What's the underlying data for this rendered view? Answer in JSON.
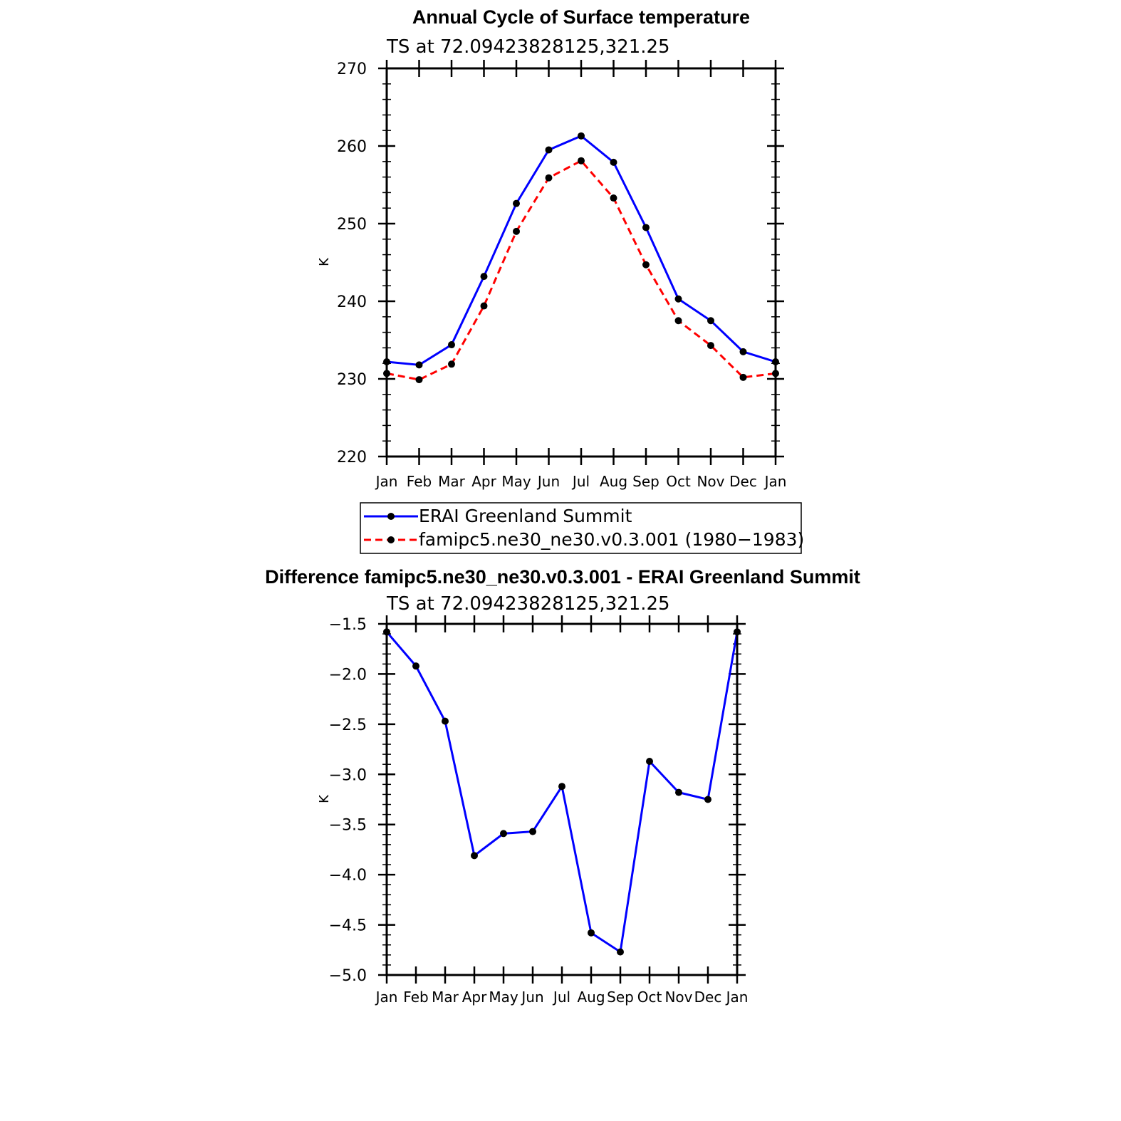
{
  "chart_data": [
    {
      "type": "line",
      "title": "Annual Cycle of Surface temperature",
      "subtitle": "TS  at  72.09423828125,321.25",
      "ylabel": "K",
      "xlabel": "",
      "categories": [
        "Jan",
        "Feb",
        "Mar",
        "Apr",
        "May",
        "Jun",
        "Jul",
        "Aug",
        "Sep",
        "Oct",
        "Nov",
        "Dec",
        "Jan"
      ],
      "ylim": [
        220,
        270
      ],
      "yticks": [
        220,
        230,
        240,
        250,
        260,
        270
      ],
      "ytick_labels": [
        "220",
        "230",
        "240",
        "250",
        "260",
        "270"
      ],
      "series": [
        {
          "name": "ERAI Greenland Summit",
          "color": "#0000ff",
          "dash": "solid",
          "values": [
            232.2,
            231.8,
            234.4,
            243.2,
            252.6,
            259.5,
            261.3,
            257.9,
            249.5,
            240.3,
            237.5,
            233.5,
            232.2
          ]
        },
        {
          "name": "famipc5.ne30_ne30.v0.3.001  (1980−1983)",
          "color": "#ff0000",
          "dash": "dashed",
          "values": [
            230.7,
            229.9,
            231.9,
            239.4,
            249.0,
            255.9,
            258.1,
            253.3,
            244.7,
            237.5,
            234.3,
            230.2,
            230.7
          ]
        }
      ],
      "legend": "bottom"
    },
    {
      "type": "line",
      "title": "Difference famipc5.ne30_ne30.v0.3.001 - ERAI Greenland Summit",
      "subtitle": "TS  at  72.09423828125,321.25",
      "ylabel": "K",
      "xlabel": "",
      "categories": [
        "Jan",
        "Feb",
        "Mar",
        "Apr",
        "May",
        "Jun",
        "Jul",
        "Aug",
        "Sep",
        "Oct",
        "Nov",
        "Dec",
        "Jan"
      ],
      "ylim": [
        -5.0,
        -1.5
      ],
      "yticks": [
        -5.0,
        -4.5,
        -4.0,
        -3.5,
        -3.0,
        -2.5,
        -2.0,
        -1.5
      ],
      "ytick_labels": [
        "−5.0",
        "−4.5",
        "−4.0",
        "−3.5",
        "−3.0",
        "−2.5",
        "−2.0",
        "−1.5"
      ],
      "series": [
        {
          "name": "Difference",
          "color": "#0000ff",
          "dash": "solid",
          "values": [
            -1.58,
            -1.92,
            -2.47,
            -3.81,
            -3.59,
            -3.57,
            -3.12,
            -4.58,
            -4.77,
            -2.87,
            -3.18,
            -3.25,
            -1.58
          ]
        }
      ],
      "legend": "none"
    }
  ]
}
